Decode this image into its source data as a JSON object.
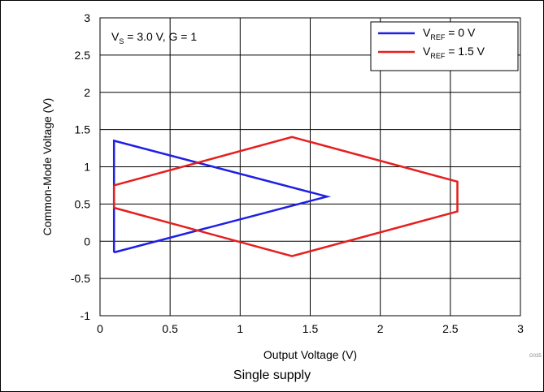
{
  "caption": "Single supply",
  "figure_code": "G035",
  "chart_data": {
    "type": "line",
    "title": "",
    "xlabel": "Output Voltage (V)",
    "ylabel": "Common-Mode Voltage (V)",
    "xlim": [
      0,
      3
    ],
    "ylim": [
      -1,
      3
    ],
    "xticks": [
      0,
      0.5,
      1,
      1.5,
      2,
      2.5,
      3
    ],
    "xtick_labels": [
      "0",
      "0.5",
      "1",
      "1.5",
      "2",
      "2.5",
      "3"
    ],
    "yticks": [
      -1,
      -0.5,
      0,
      0.5,
      1,
      1.5,
      2,
      2.5,
      3
    ],
    "ytick_labels": [
      "-1",
      "-0.5",
      "0",
      "0.5",
      "1",
      "1.5",
      "2",
      "2.5",
      "3"
    ],
    "grid": true,
    "legend_position": "top-right",
    "annotation": {
      "main": "V",
      "sub": "S",
      "rest": " = 3.0 V, G = 1"
    },
    "series": [
      {
        "name": "V_REF = 0 V",
        "legend": {
          "main": "V",
          "sub": "REF",
          "rest": " = 0 V"
        },
        "color": "#1f1fe6",
        "points": [
          [
            0.1,
            -0.15
          ],
          [
            0.1,
            1.35
          ],
          [
            1.62,
            0.6
          ],
          [
            0.1,
            -0.15
          ]
        ]
      },
      {
        "name": "V_REF = 1.5 V",
        "legend": {
          "main": "V",
          "sub": "REF",
          "rest": " = 1.5 V"
        },
        "color": "#e61e1e",
        "points": [
          [
            0.1,
            0.75
          ],
          [
            1.37,
            1.4
          ],
          [
            2.55,
            0.8
          ],
          [
            2.55,
            0.4
          ],
          [
            1.37,
            -0.2
          ],
          [
            0.1,
            0.45
          ],
          [
            0.1,
            0.75
          ]
        ]
      }
    ]
  }
}
